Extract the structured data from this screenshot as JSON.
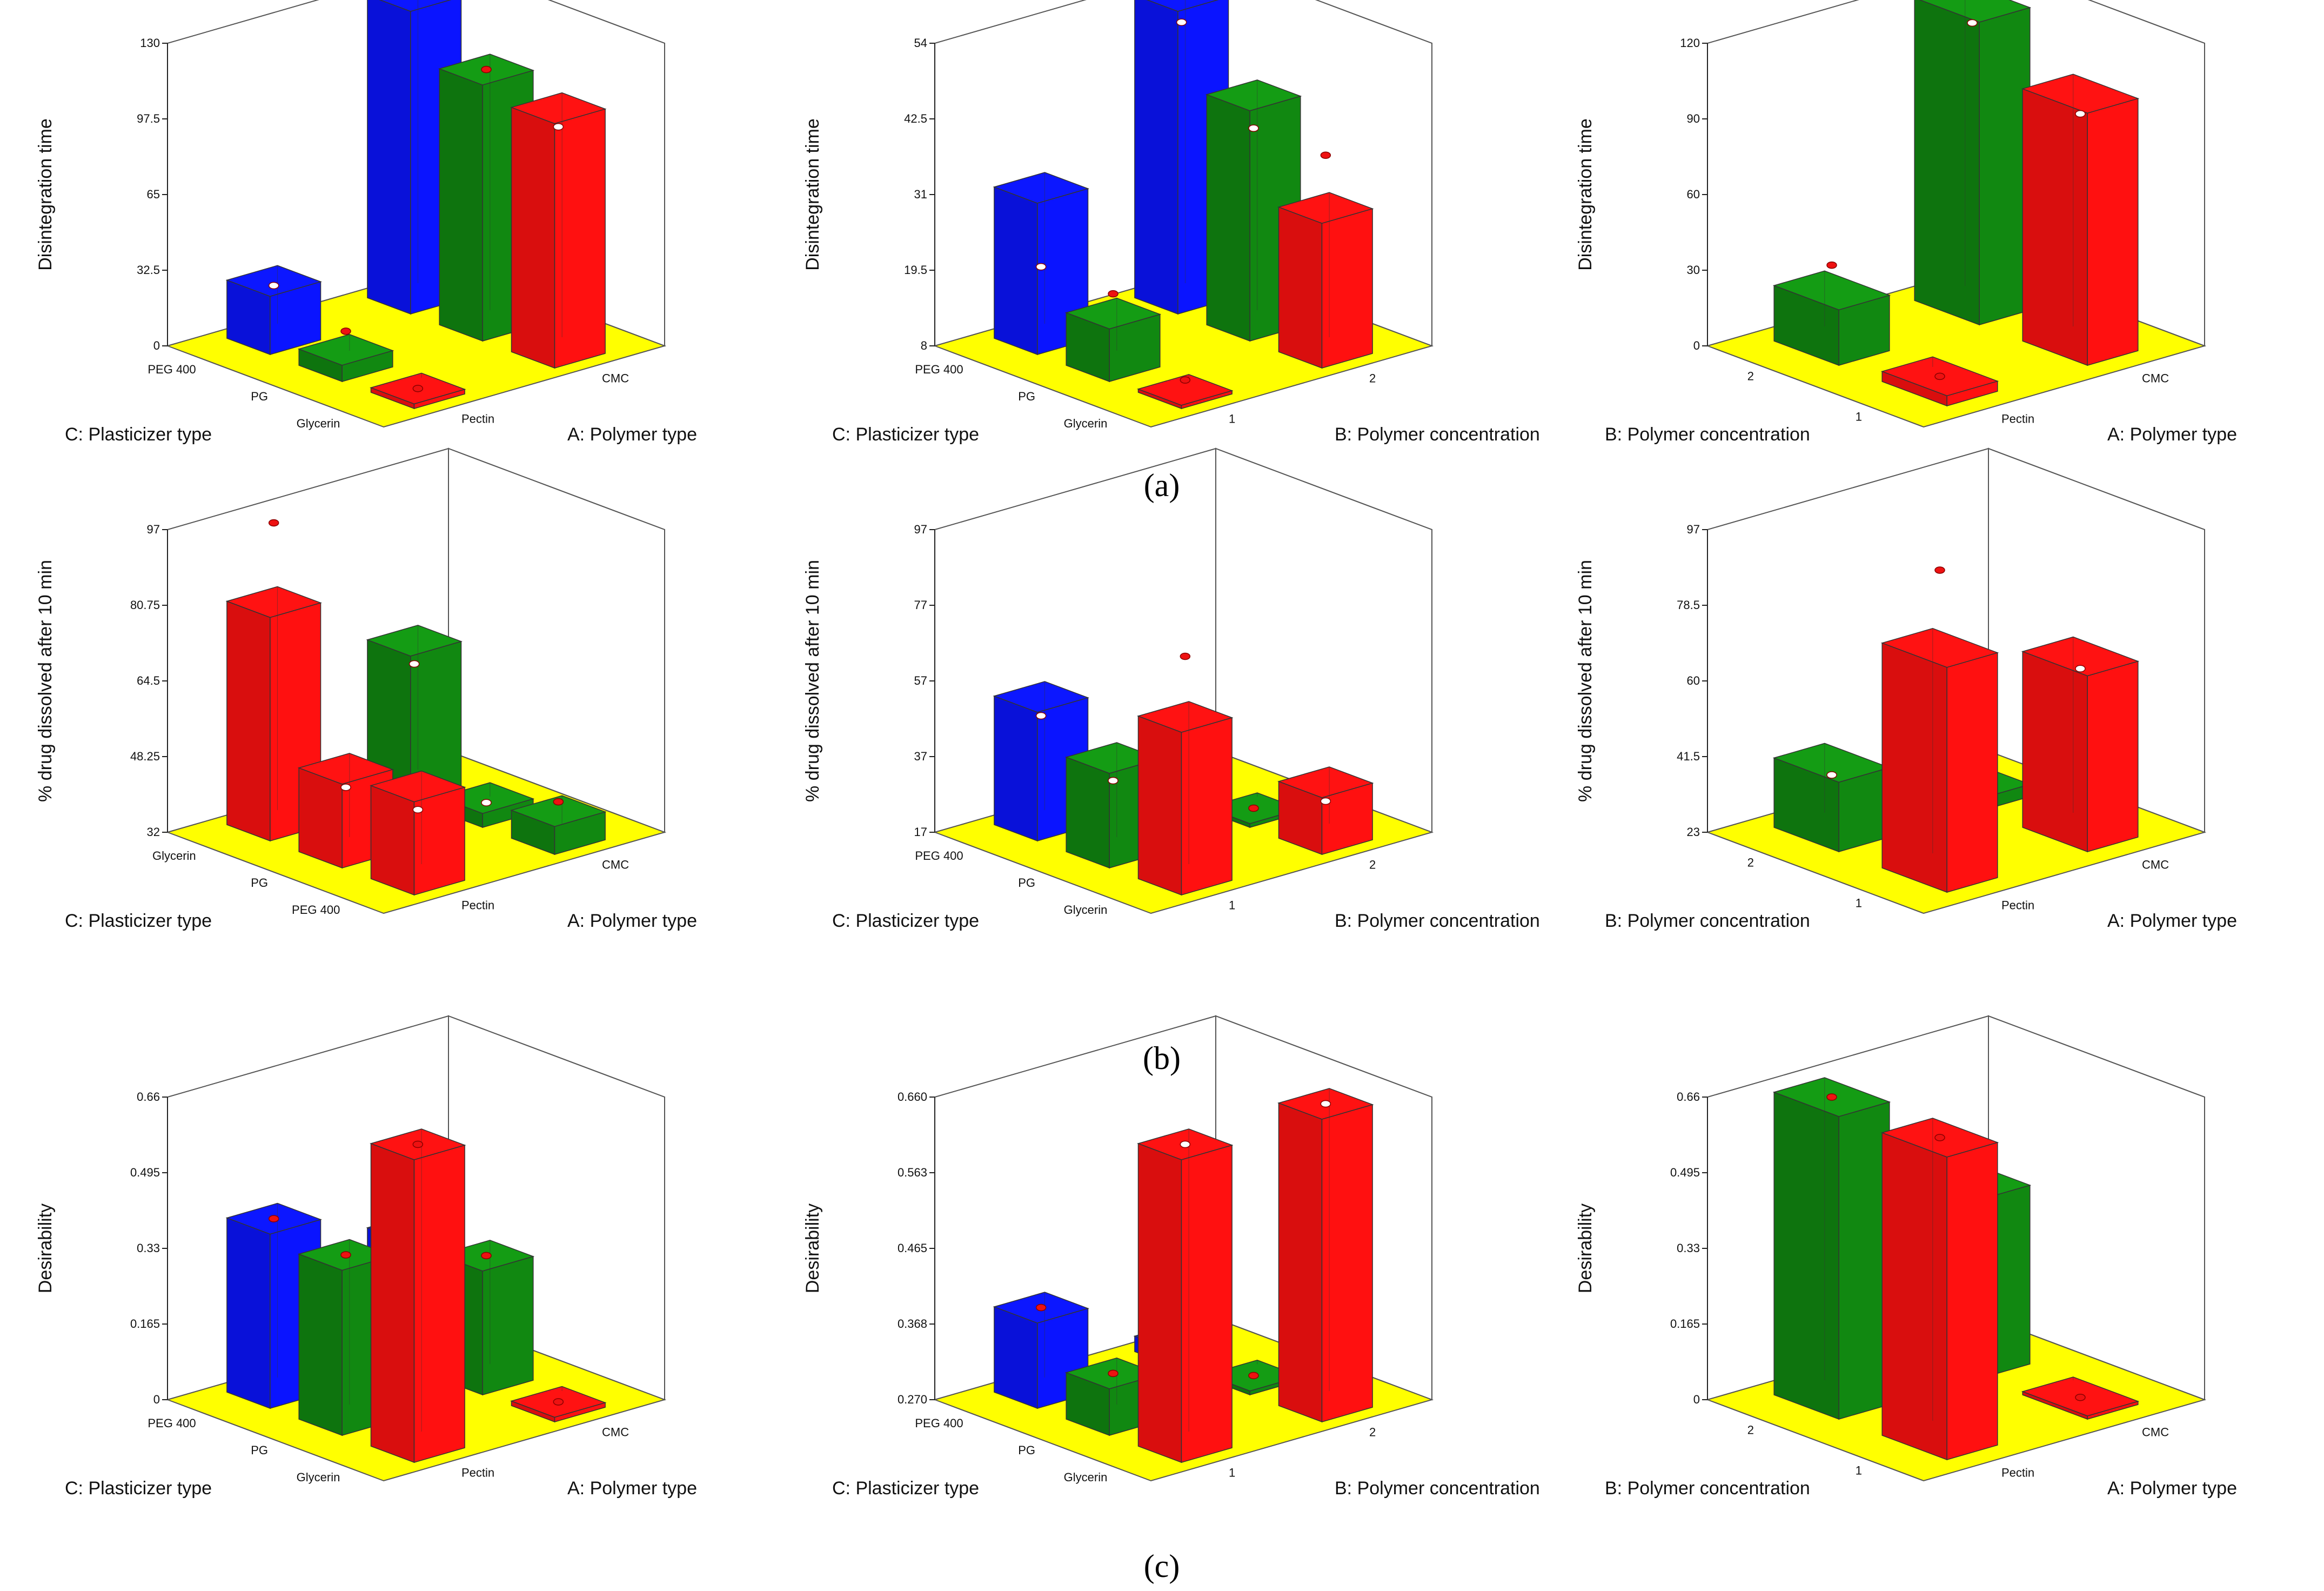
{
  "figure": {
    "captions": [
      "(a)",
      "(b)",
      "(c)"
    ]
  },
  "colors": {
    "floor": "#ffff00",
    "wall": "#ffffff",
    "frame": "#555555",
    "blue": "#0a14ff",
    "green": "#118811",
    "red": "#ff1010",
    "point_red": "#ee1111",
    "point_white": "#ffffff"
  },
  "chart_data": [
    {
      "type": "bar3d",
      "ylabel": "Disintegration time",
      "yticks": [
        "0",
        "32.5",
        "65",
        "97.5",
        "130"
      ],
      "ylim": [
        0,
        130
      ],
      "left_axis_label": "C: Plasticizer type",
      "left_categories": [
        "PEG 400",
        "PG",
        "Glycerin"
      ],
      "right_axis_label": "A: Polymer type",
      "right_categories": [
        "Pectin",
        "CMC"
      ],
      "bars": [
        {
          "left": "PEG 400",
          "right": "Pectin",
          "value": 25,
          "color": "blue",
          "point": 23,
          "point_color": "white"
        },
        {
          "left": "PG",
          "right": "Pectin",
          "value": 7,
          "color": "green",
          "point": 15,
          "point_color": "red"
        },
        {
          "left": "Glycerin",
          "right": "Pectin",
          "value": 2,
          "color": "red",
          "point": 2,
          "point_color": "red"
        },
        {
          "left": "PEG 400",
          "right": "CMC",
          "value": 130,
          "color": "blue",
          "point": 130,
          "point_color": "red"
        },
        {
          "left": "PG",
          "right": "CMC",
          "value": 110,
          "color": "green",
          "point": 110,
          "point_color": "red"
        },
        {
          "left": "Glycerin",
          "right": "CMC",
          "value": 105,
          "color": "red",
          "point": 97,
          "point_color": "white"
        }
      ]
    },
    {
      "type": "bar3d",
      "ylabel": "Disintegration time",
      "yticks": [
        "8",
        "19.5",
        "31",
        "42.5",
        "54"
      ],
      "ylim": [
        8,
        54
      ],
      "left_axis_label": "C: Plasticizer type",
      "left_categories": [
        "PEG 400",
        "PG",
        "Glycerin"
      ],
      "right_axis_label": "B: Polymer concentration",
      "right_categories": [
        "1",
        "2"
      ],
      "bars": [
        {
          "left": "PEG 400",
          "right": "1",
          "value": 31,
          "color": "blue",
          "point": 19,
          "point_color": "white"
        },
        {
          "left": "PG",
          "right": "1",
          "value": 16,
          "color": "green",
          "point": 19,
          "point_color": "red"
        },
        {
          "left": "Glycerin",
          "right": "1",
          "value": 8.5,
          "color": "red",
          "point": 10,
          "point_color": "red"
        },
        {
          "left": "PEG 400",
          "right": "2",
          "value": 54,
          "color": "blue",
          "point": 50,
          "point_color": "white"
        },
        {
          "left": "PG",
          "right": "2",
          "value": 43,
          "color": "green",
          "point": 38,
          "point_color": "white"
        },
        {
          "left": "Glycerin",
          "right": "2",
          "value": 30,
          "color": "red",
          "point": 38,
          "point_color": "red"
        }
      ]
    },
    {
      "type": "bar3d",
      "ylabel": "Disintegration time",
      "yticks": [
        "0",
        "30",
        "60",
        "90",
        "120"
      ],
      "ylim": [
        0,
        120
      ],
      "left_axis_label": "B: Polymer concentration",
      "left_categories": [
        "2",
        "1"
      ],
      "right_axis_label": "A: Polymer type",
      "right_categories": [
        "Pectin",
        "CMC"
      ],
      "bars": [
        {
          "left": "2",
          "right": "Pectin",
          "value": 22,
          "color": "green",
          "point": 32,
          "point_color": "red"
        },
        {
          "left": "1",
          "right": "Pectin",
          "value": 4,
          "color": "red",
          "point": 4,
          "point_color": "red"
        },
        {
          "left": "2",
          "right": "CMC",
          "value": 120,
          "color": "green",
          "point": 112,
          "point_color": "white"
        },
        {
          "left": "1",
          "right": "CMC",
          "value": 100,
          "color": "red",
          "point": 92,
          "point_color": "white"
        }
      ]
    },
    {
      "type": "bar3d",
      "ylabel": "% drug dissolved after 10 min",
      "yticks": [
        "32",
        "48.25",
        "64.5",
        "80.75",
        "97"
      ],
      "ylim": [
        32,
        97
      ],
      "left_axis_label": "C: Plasticizer type",
      "left_categories": [
        "Glycerin",
        "PG",
        "PEG 400"
      ],
      "right_axis_label": "A: Polymer type",
      "right_categories": [
        "Pectin",
        "CMC"
      ],
      "bars": [
        {
          "left": "Glycerin",
          "right": "Pectin",
          "value": 80,
          "color": "red",
          "point": 97,
          "point_color": "red"
        },
        {
          "left": "PG",
          "right": "Pectin",
          "value": 50,
          "color": "red",
          "point": 46,
          "point_color": "white"
        },
        {
          "left": "PEG 400",
          "right": "Pectin",
          "value": 52,
          "color": "red",
          "point": 47,
          "point_color": "white"
        },
        {
          "left": "Glycerin",
          "right": "CMC",
          "value": 63,
          "color": "green",
          "point": 58,
          "point_color": "white"
        },
        {
          "left": "PG",
          "right": "CMC",
          "value": 35,
          "color": "green",
          "point": 34,
          "point_color": "white"
        },
        {
          "left": "PEG 400",
          "right": "CMC",
          "value": 38,
          "color": "green",
          "point": 40,
          "point_color": "red"
        }
      ]
    },
    {
      "type": "bar3d",
      "ylabel": "% drug dissolved after 10 min",
      "yticks": [
        "17",
        "37",
        "57",
        "77",
        "97"
      ],
      "ylim": [
        17,
        97
      ],
      "left_axis_label": "C: Plasticizer type",
      "left_categories": [
        "PEG 400",
        "PG",
        "Glycerin"
      ],
      "right_axis_label": "B: Polymer concentration",
      "right_categories": [
        "1",
        "2"
      ],
      "bars": [
        {
          "left": "PEG 400",
          "right": "1",
          "value": 51,
          "color": "blue",
          "point": 46,
          "point_color": "white"
        },
        {
          "left": "PG",
          "right": "1",
          "value": 42,
          "color": "green",
          "point": 36,
          "point_color": "white"
        },
        {
          "left": "Glycerin",
          "right": "1",
          "value": 60,
          "color": "red",
          "point": 76,
          "point_color": "red"
        },
        {
          "left": "PEG 400",
          "right": "2",
          "value": 21,
          "color": "blue",
          "point": 20,
          "point_color": "white"
        },
        {
          "left": "PG",
          "right": "2",
          "value": 18,
          "color": "green",
          "point": 18,
          "point_color": "red"
        },
        {
          "left": "Glycerin",
          "right": "2",
          "value": 32,
          "color": "red",
          "point": 27,
          "point_color": "white"
        }
      ]
    },
    {
      "type": "bar3d",
      "ylabel": "% drug dissolved after 10 min",
      "yticks": [
        "23",
        "41.5",
        "60",
        "78.5",
        "97"
      ],
      "ylim": [
        23,
        97
      ],
      "left_axis_label": "B: Polymer concentration",
      "left_categories": [
        "2",
        "1"
      ],
      "right_axis_label": "A: Polymer type",
      "right_categories": [
        "Pectin",
        "CMC"
      ],
      "bars": [
        {
          "left": "2",
          "right": "Pectin",
          "value": 40,
          "color": "green",
          "point": 37,
          "point_color": "white"
        },
        {
          "left": "1",
          "right": "Pectin",
          "value": 78,
          "color": "red",
          "point": 97,
          "point_color": "red"
        },
        {
          "left": "2",
          "right": "CMC",
          "value": 26,
          "color": "green",
          "point": 26,
          "point_color": "white"
        },
        {
          "left": "1",
          "right": "CMC",
          "value": 66,
          "color": "red",
          "point": 63,
          "point_color": "white"
        }
      ]
    },
    {
      "type": "bar3d",
      "ylabel": "Desirability",
      "yticks": [
        "0",
        "0.165",
        "0.33",
        "0.495",
        "0.66"
      ],
      "ylim": [
        0,
        0.66
      ],
      "left_axis_label": "C: Plasticizer type",
      "left_categories": [
        "PEG 400",
        "PG",
        "Glycerin"
      ],
      "right_axis_label": "A: Polymer type",
      "right_categories": [
        "Pectin",
        "CMC"
      ],
      "bars": [
        {
          "left": "PEG 400",
          "right": "Pectin",
          "value": 0.38,
          "color": "blue",
          "point": 0.38,
          "point_color": "red"
        },
        {
          "left": "PG",
          "right": "Pectin",
          "value": 0.36,
          "color": "green",
          "point": 0.36,
          "point_color": "red"
        },
        {
          "left": "Glycerin",
          "right": "Pectin",
          "value": 0.66,
          "color": "red",
          "point": 0.66,
          "point_color": "red"
        },
        {
          "left": "PEG 400",
          "right": "CMC",
          "value": 0.27,
          "color": "blue",
          "point": 0.27,
          "point_color": "red"
        },
        {
          "left": "PG",
          "right": "CMC",
          "value": 0.27,
          "color": "green",
          "point": 0.27,
          "point_color": "red"
        },
        {
          "left": "Glycerin",
          "right": "CMC",
          "value": 0.01,
          "color": "red",
          "point": 0.01,
          "point_color": "red"
        }
      ]
    },
    {
      "type": "bar3d",
      "ylabel": "Desirability",
      "yticks": [
        "0.270",
        "0.368",
        "0.465",
        "0.563",
        "0.660"
      ],
      "ylim": [
        0.27,
        0.66
      ],
      "left_axis_label": "C: Plasticizer type",
      "left_categories": [
        "PEG 400",
        "PG",
        "Glycerin"
      ],
      "right_axis_label": "B: Polymer concentration",
      "right_categories": [
        "1",
        "2"
      ],
      "bars": [
        {
          "left": "PEG 400",
          "right": "1",
          "value": 0.38,
          "color": "blue",
          "point": 0.38,
          "point_color": "red"
        },
        {
          "left": "PG",
          "right": "1",
          "value": 0.33,
          "color": "green",
          "point": 0.33,
          "point_color": "red"
        },
        {
          "left": "Glycerin",
          "right": "1",
          "value": 0.66,
          "color": "red",
          "point": 0.66,
          "point_color": "white"
        },
        {
          "left": "PEG 400",
          "right": "2",
          "value": 0.29,
          "color": "blue",
          "point": 0.29,
          "point_color": "red"
        },
        {
          "left": "PG",
          "right": "2",
          "value": 0.275,
          "color": "green",
          "point": 0.275,
          "point_color": "red"
        },
        {
          "left": "Glycerin",
          "right": "2",
          "value": 0.66,
          "color": "red",
          "point": 0.66,
          "point_color": "white"
        }
      ]
    },
    {
      "type": "bar3d",
      "ylabel": "Desirability",
      "yticks": [
        "0",
        "0.165",
        "0.33",
        "0.495",
        "0.66"
      ],
      "ylim": [
        0,
        0.66
      ],
      "left_axis_label": "B: Polymer concentration",
      "left_categories": [
        "2",
        "1"
      ],
      "right_axis_label": "A: Polymer type",
      "right_categories": [
        "Pectin",
        "CMC"
      ],
      "bars": [
        {
          "left": "2",
          "right": "Pectin",
          "value": 0.66,
          "color": "green",
          "point": 0.66,
          "point_color": "red"
        },
        {
          "left": "1",
          "right": "Pectin",
          "value": 0.66,
          "color": "red",
          "point": 0.66,
          "point_color": "red"
        },
        {
          "left": "2",
          "right": "CMC",
          "value": 0.39,
          "color": "green",
          "point": 0.39,
          "point_color": "red"
        },
        {
          "left": "1",
          "right": "CMC",
          "value": 0.005,
          "color": "red",
          "point": 0.005,
          "point_color": "red"
        }
      ]
    }
  ]
}
